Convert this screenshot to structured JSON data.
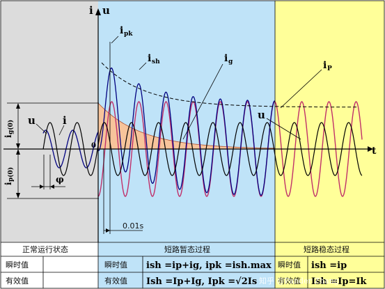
{
  "colors": {
    "left_bg": "#dcdcdc",
    "transient_bg": "#bfe3f8",
    "steady_bg": "#ffff99",
    "ig_fill": "#f7c49b",
    "ip_curve": "#c0306a",
    "i_curve": "#000080",
    "u_curve": "#000000",
    "grid": "#000000"
  },
  "axes": {
    "vertical_label_i": "i",
    "vertical_label_u": "u",
    "horizontal_label": "t",
    "origin": "0"
  },
  "labels": {
    "ipk": "i",
    "ipk_sub": "pk",
    "ish": "i",
    "ish_sub": "sh",
    "ig": "i",
    "ig_sub": "g",
    "ip": "i",
    "ip_sub": "P",
    "u_left": "u",
    "i_left": "i",
    "u_right": "u",
    "phi": "φ",
    "ig0": "i",
    "ig0_sub": "g(0)",
    "ip0": "i",
    "ip0_sub": "p(0)",
    "t001": "0.01s"
  },
  "table": {
    "normal_header": "正常运行状态",
    "transient_header": "短路暂态过程",
    "steady_header": "短路稳态过程",
    "row1_label": "瞬时值",
    "row2_label": "有效值",
    "transient_row1_label": "瞬时值",
    "transient_row2_label": "有效值",
    "steady_row1_label": "瞬时值",
    "steady_row2_label": "有效值",
    "transient_formula1": "ish =ip+ig, ipk =ish.max",
    "transient_formula2": "Ish =Ip+Ig, Ipk =√2Is",
    "steady_formula1": "ish =ip",
    "steady_formula2": "Ish =Ip=Ik"
  },
  "watermark": "知乎 @Pander Zhang"
}
